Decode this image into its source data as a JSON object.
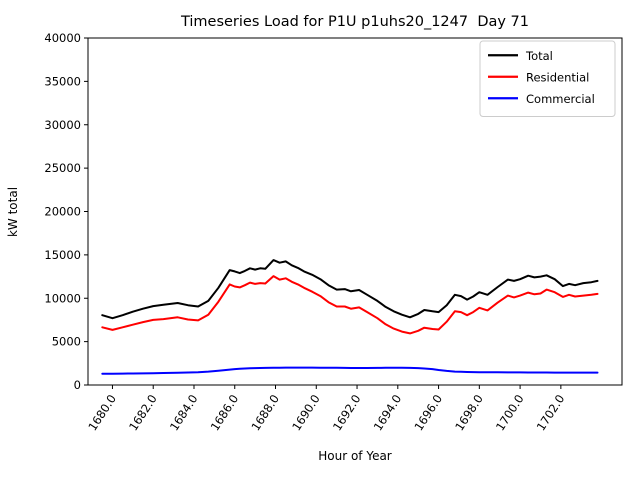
{
  "chart_data": {
    "type": "line",
    "title": "Timeseries Load for P1U p1uhs20_1247  Day 71",
    "xlabel": "Hour of Year",
    "ylabel": "kW total",
    "xlim": [
      1678.8,
      1705.0
    ],
    "ylim": [
      0,
      40000
    ],
    "xticks": [
      1680,
      1682,
      1684,
      1686,
      1688,
      1690,
      1692,
      1694,
      1696,
      1698,
      1700,
      1702
    ],
    "xtick_labels": [
      "1680.0",
      "1682.0",
      "1684.0",
      "1686.0",
      "1688.0",
      "1690.0",
      "1692.0",
      "1694.0",
      "1696.0",
      "1698.0",
      "1700.0",
      "1702.0"
    ],
    "yticks": [
      0,
      5000,
      10000,
      15000,
      20000,
      25000,
      30000,
      35000,
      40000
    ],
    "ytick_labels": [
      "0",
      "5000",
      "10000",
      "15000",
      "20000",
      "25000",
      "30000",
      "35000",
      "40000"
    ],
    "grid": false,
    "legend_position": "upper right",
    "background_color": "#ffffff",
    "axis_color": "#000000",
    "x": [
      1679.5,
      1680.0,
      1680.5,
      1681.0,
      1681.5,
      1682.0,
      1682.5,
      1683.2,
      1683.7,
      1684.2,
      1684.7,
      1685.2,
      1685.75,
      1686.0,
      1686.25,
      1686.5,
      1686.75,
      1687.0,
      1687.25,
      1687.5,
      1687.9,
      1688.2,
      1688.5,
      1688.8,
      1689.1,
      1689.4,
      1689.8,
      1690.2,
      1690.6,
      1691.0,
      1691.4,
      1691.7,
      1692.1,
      1692.5,
      1693.0,
      1693.4,
      1693.8,
      1694.2,
      1694.6,
      1695.0,
      1695.3,
      1695.7,
      1696.0,
      1696.4,
      1696.8,
      1697.1,
      1697.4,
      1697.7,
      1698.0,
      1698.4,
      1698.9,
      1699.4,
      1699.7,
      1700.0,
      1700.4,
      1700.7,
      1701.0,
      1701.3,
      1701.7,
      1702.1,
      1702.4,
      1702.7,
      1703.1,
      1703.5,
      1703.8
    ],
    "series": [
      {
        "name": "Total",
        "color": "#000000",
        "values": [
          8050,
          7700,
          8050,
          8450,
          8800,
          9100,
          9250,
          9450,
          9200,
          9050,
          9700,
          11200,
          13250,
          13100,
          12900,
          13150,
          13450,
          13300,
          13450,
          13400,
          14400,
          14100,
          14250,
          13800,
          13500,
          13100,
          12700,
          12200,
          11500,
          11000,
          11050,
          10800,
          10950,
          10400,
          9700,
          9000,
          8500,
          8100,
          7800,
          8200,
          8650,
          8500,
          8400,
          9200,
          10400,
          10250,
          9850,
          10200,
          10700,
          10400,
          11300,
          12150,
          12000,
          12200,
          12600,
          12400,
          12500,
          12650,
          12200,
          11400,
          11650,
          11500,
          11750,
          11850,
          12000
        ]
      },
      {
        "name": "Residential",
        "color": "#ff0000",
        "values": [
          6650,
          6350,
          6650,
          6950,
          7250,
          7500,
          7600,
          7800,
          7550,
          7450,
          8100,
          9600,
          11600,
          11350,
          11250,
          11500,
          11800,
          11650,
          11750,
          11700,
          12550,
          12150,
          12300,
          11900,
          11600,
          11200,
          10750,
          10250,
          9550,
          9050,
          9050,
          8800,
          8950,
          8400,
          7700,
          7000,
          6500,
          6150,
          5950,
          6250,
          6600,
          6450,
          6400,
          7300,
          8500,
          8400,
          8050,
          8400,
          8900,
          8600,
          9500,
          10300,
          10100,
          10300,
          10650,
          10450,
          10550,
          11000,
          10700,
          10150,
          10400,
          10200,
          10300,
          10400,
          10500
        ]
      },
      {
        "name": "Commercial",
        "color": "#0000ff",
        "values": [
          1300,
          1300,
          1310,
          1320,
          1335,
          1355,
          1380,
          1420,
          1445,
          1480,
          1540,
          1650,
          1780,
          1830,
          1870,
          1900,
          1930,
          1950,
          1965,
          1975,
          1990,
          1995,
          2000,
          2000,
          2000,
          2000,
          2000,
          1995,
          1990,
          1985,
          1975,
          1965,
          1960,
          1965,
          1975,
          1980,
          1985,
          1985,
          1975,
          1950,
          1900,
          1830,
          1730,
          1620,
          1550,
          1520,
          1500,
          1490,
          1480,
          1470,
          1460,
          1455,
          1450,
          1450,
          1445,
          1445,
          1440,
          1440,
          1435,
          1435,
          1435,
          1430,
          1430,
          1430,
          1430
        ]
      }
    ]
  }
}
